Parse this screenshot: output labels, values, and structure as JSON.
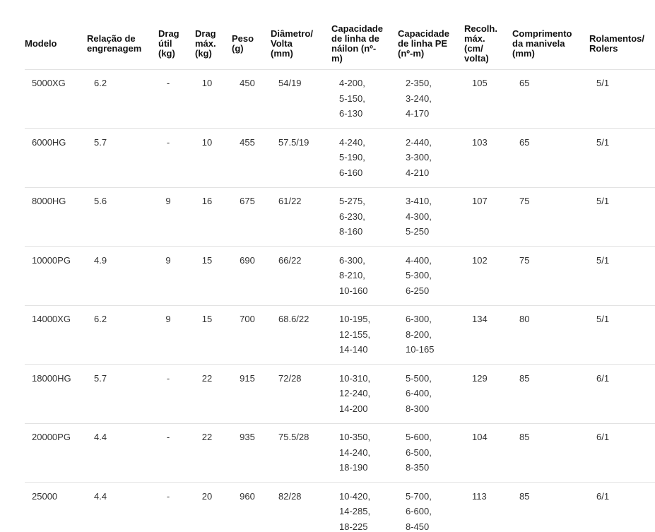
{
  "table": {
    "headers": [
      [
        "Modelo"
      ],
      [
        "Relação de",
        "engrenagem"
      ],
      [
        "Drag",
        "útil",
        "(kg)"
      ],
      [
        "Drag",
        "máx.",
        "(kg)"
      ],
      [
        "Peso",
        "(g)"
      ],
      [
        "Diâmetro/",
        "Volta",
        "(mm)"
      ],
      [
        "Capacidade",
        "de linha de",
        "náilon (nº-",
        "m)"
      ],
      [
        "Capacidade",
        "de linha PE",
        "(nº-m)"
      ],
      [
        "Recolh.",
        "máx.",
        "(cm/",
        "volta)"
      ],
      [
        "Comprimento",
        "da manivela",
        "(mm)"
      ],
      [
        "Rolamentos/",
        "Rolers"
      ]
    ],
    "rows": [
      [
        [
          "5000XG"
        ],
        [
          "6.2"
        ],
        [
          "-"
        ],
        [
          "10"
        ],
        [
          "450"
        ],
        [
          "54/19"
        ],
        [
          "4-200,",
          "5-150,",
          "6-130"
        ],
        [
          "2-350,",
          "3-240,",
          "4-170"
        ],
        [
          "105"
        ],
        [
          "65"
        ],
        [
          "5/1"
        ]
      ],
      [
        [
          "6000HG"
        ],
        [
          "5.7"
        ],
        [
          "-"
        ],
        [
          "10"
        ],
        [
          "455"
        ],
        [
          "57.5/19"
        ],
        [
          "4-240,",
          "5-190,",
          "6-160"
        ],
        [
          "2-440,",
          "3-300,",
          "4-210"
        ],
        [
          "103"
        ],
        [
          "65"
        ],
        [
          "5/1"
        ]
      ],
      [
        [
          "8000HG"
        ],
        [
          "5.6"
        ],
        [
          "9"
        ],
        [
          "16"
        ],
        [
          "675"
        ],
        [
          "61/22"
        ],
        [
          "5-275,",
          "6-230,",
          "8-160"
        ],
        [
          "3-410,",
          "4-300,",
          "5-250"
        ],
        [
          "107"
        ],
        [
          "75"
        ],
        [
          "5/1"
        ]
      ],
      [
        [
          "10000PG"
        ],
        [
          "4.9"
        ],
        [
          "9"
        ],
        [
          "15"
        ],
        [
          "690"
        ],
        [
          "66/22"
        ],
        [
          "6-300,",
          "8-210,",
          "10-160"
        ],
        [
          "4-400,",
          "5-300,",
          "6-250"
        ],
        [
          "102"
        ],
        [
          "75"
        ],
        [
          "5/1"
        ]
      ],
      [
        [
          "14000XG"
        ],
        [
          "6.2"
        ],
        [
          "9"
        ],
        [
          "15"
        ],
        [
          "700"
        ],
        [
          "68.6/22"
        ],
        [
          "10-195,",
          "12-155,",
          "14-140"
        ],
        [
          "6-300,",
          "8-200,",
          "10-165"
        ],
        [
          "134"
        ],
        [
          "80"
        ],
        [
          "5/1"
        ]
      ],
      [
        [
          "18000HG"
        ],
        [
          "5.7"
        ],
        [
          "-"
        ],
        [
          "22"
        ],
        [
          "915"
        ],
        [
          "72/28"
        ],
        [
          "10-310,",
          "12-240,",
          "14-200"
        ],
        [
          "5-500,",
          "6-400,",
          "8-300"
        ],
        [
          "129"
        ],
        [
          "85"
        ],
        [
          "6/1"
        ]
      ],
      [
        [
          "20000PG"
        ],
        [
          "4.4"
        ],
        [
          "-"
        ],
        [
          "22"
        ],
        [
          "935"
        ],
        [
          "75.5/28"
        ],
        [
          "10-350,",
          "14-240,",
          "18-190"
        ],
        [
          "5-600,",
          "6-500,",
          "8-350"
        ],
        [
          "104"
        ],
        [
          "85"
        ],
        [
          "6/1"
        ]
      ],
      [
        [
          "25000"
        ],
        [
          "4.4"
        ],
        [
          "-"
        ],
        [
          "20"
        ],
        [
          "960"
        ],
        [
          "82/28"
        ],
        [
          "10-420,",
          "14-285,",
          "18-225"
        ],
        [
          "5-700,",
          "6-600,",
          "8-450"
        ],
        [
          "113"
        ],
        [
          "85"
        ],
        [
          "6/1"
        ]
      ]
    ]
  }
}
